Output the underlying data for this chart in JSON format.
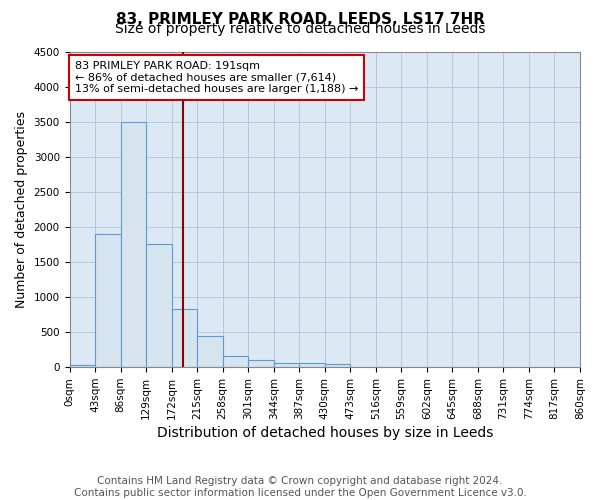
{
  "title1": "83, PRIMLEY PARK ROAD, LEEDS, LS17 7HR",
  "title2": "Size of property relative to detached houses in Leeds",
  "xlabel": "Distribution of detached houses by size in Leeds",
  "ylabel": "Number of detached properties",
  "footnote": "Contains HM Land Registry data © Crown copyright and database right 2024.\nContains public sector information licensed under the Open Government Licence v3.0.",
  "bin_edges": [
    0,
    43,
    86,
    129,
    172,
    215,
    258,
    301,
    344,
    387,
    430,
    473,
    516,
    559,
    602,
    645,
    688,
    731,
    774,
    817,
    860
  ],
  "bar_heights": [
    30,
    1900,
    3500,
    1750,
    830,
    450,
    160,
    100,
    65,
    65,
    50,
    0,
    0,
    0,
    0,
    0,
    0,
    0,
    0,
    0
  ],
  "bar_color": "#d6e4f0",
  "bar_edge_color": "#5b9bd5",
  "plot_bg_color": "#dce9f5",
  "property_value": 191,
  "vline_color": "#8b0000",
  "annotation_line1": "83 PRIMLEY PARK ROAD: 191sqm",
  "annotation_line2": "← 86% of detached houses are smaller (7,614)",
  "annotation_line3": "13% of semi-detached houses are larger (1,188) →",
  "annotation_box_color": "#ffffff",
  "annotation_box_edge": "#cc0000",
  "ylim": [
    0,
    4500
  ],
  "xlim": [
    0,
    860
  ],
  "grid_color": "#b0c4d8",
  "background_color": "#ffffff",
  "title1_fontsize": 11,
  "title2_fontsize": 10,
  "xlabel_fontsize": 10,
  "ylabel_fontsize": 9,
  "tick_fontsize": 7.5,
  "footnote_fontsize": 7.5,
  "annotation_fontsize": 8
}
